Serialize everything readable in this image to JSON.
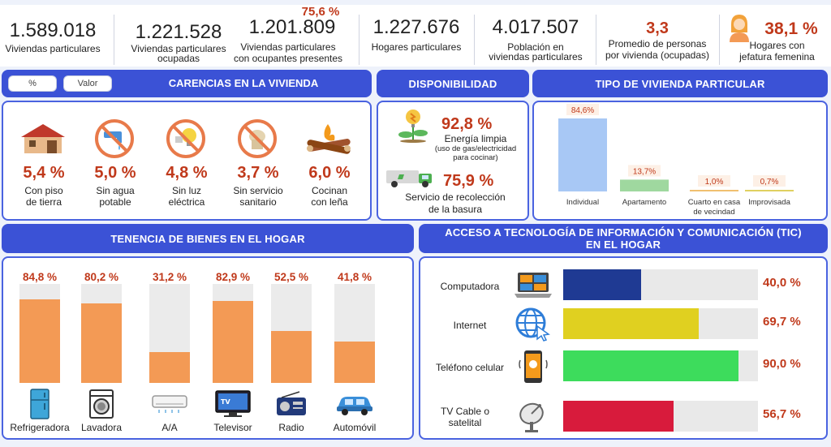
{
  "summary": {
    "viviendas_particulares": {
      "value": "1.589.018",
      "label": "Viviendas particulares"
    },
    "ocupadas": {
      "value": "1.221.528",
      "label_line1": "Viviendas particulares",
      "label_line2": "ocupadas"
    },
    "presentes": {
      "pct": "75,6 %",
      "value": "1.201.809",
      "label_line1": "Viviendas particulares",
      "label_line2": "con ocupantes presentes"
    },
    "hogares": {
      "value": "1.227.676",
      "label": "Hogares particulares"
    },
    "poblacion": {
      "value": "4.017.507",
      "label_line1": "Población en",
      "label_line2": "viviendas particulares"
    },
    "promedio": {
      "value": "3,3",
      "label_line1": "Promedio de personas",
      "label_line2": "por vivienda (ocupadas)"
    },
    "jefatura": {
      "value": "38,1 %",
      "label_line1": "Hogares con",
      "label_line2": "jefatura femenina"
    }
  },
  "toggle": {
    "pct_label": "%",
    "valor_label": "Valor"
  },
  "carencias": {
    "title": "CARENCIAS EN LA VIVIENDA",
    "items": [
      {
        "pct": "5,4 %",
        "line1": "Con piso",
        "line2": "de tierra",
        "icon": "house-icon"
      },
      {
        "pct": "5,0 %",
        "line1": "Sin agua",
        "line2": "potable",
        "icon": "no-water-icon"
      },
      {
        "pct": "4,8 %",
        "line1": "Sin luz",
        "line2": "eléctrica",
        "icon": "no-electricity-icon"
      },
      {
        "pct": "3,7 %",
        "line1": "Sin servicio",
        "line2": "sanitario",
        "icon": "no-toilet-icon"
      },
      {
        "pct": "6,0 %",
        "line1": "Cocinan",
        "line2": "con leña",
        "icon": "firewood-icon"
      }
    ]
  },
  "disponibilidad": {
    "title": "DISPONIBILIDAD",
    "energia": {
      "pct": "92,8 %",
      "line1": "Energía limpia",
      "line2": "(uso de gas/electricidad",
      "line3": "para cocinar)"
    },
    "basura": {
      "pct": "75,9 %",
      "line1": "Servicio de recolección",
      "line2": "de la basura"
    }
  },
  "tipo": {
    "title": "TIPO DE VIVIENDA PARTICULAR",
    "bars": [
      {
        "label": "Individual",
        "label2": "",
        "value": 84.6,
        "text": "84,6%",
        "color": "#a8c8f5"
      },
      {
        "label": "Apartamento",
        "label2": "",
        "value": 13.7,
        "text": "13,7%",
        "color": "#9fd89f"
      },
      {
        "label": "Cuarto en casa",
        "label2": "de vecindad",
        "value": 1.0,
        "text": "1,0%",
        "color": "#f0c070"
      },
      {
        "label": "Improvisada",
        "label2": "",
        "value": 0.7,
        "text": "0,7%",
        "color": "#e0d060"
      }
    ]
  },
  "bienes": {
    "title": "TENENCIA DE BIENES EN EL HOGAR",
    "items": [
      {
        "label": "Refrigeradora",
        "value": 84.8,
        "text": "84,8 %",
        "icon": "fridge-icon"
      },
      {
        "label": "Lavadora",
        "value": 80.2,
        "text": "80,2 %",
        "icon": "washer-icon"
      },
      {
        "label": "A/A",
        "value": 31.2,
        "text": "31,2 %",
        "icon": "air-conditioner-icon"
      },
      {
        "label": "Televisor",
        "value": 82.9,
        "text": "82,9 %",
        "icon": "tv-icon"
      },
      {
        "label": "Radio",
        "value": 52.5,
        "text": "52,5 %",
        "icon": "radio-icon"
      },
      {
        "label": "Automóvil",
        "value": 41.8,
        "text": "41,8 %",
        "icon": "car-icon"
      }
    ]
  },
  "tic": {
    "title_line1": "ACCESO A TECNOLOGÍA DE INFORMACIÓN Y COMUNICACIÓN (TIC)",
    "title_line2": "EN EL HOGAR",
    "items": [
      {
        "label": "Computadora",
        "label2": "",
        "value": 40.0,
        "text": "40,0 %",
        "color": "#1f3a93",
        "icon": "laptop-icon"
      },
      {
        "label": "Internet",
        "label2": "",
        "value": 69.7,
        "text": "69,7 %",
        "color": "#e0d020",
        "icon": "globe-icon"
      },
      {
        "label": "Teléfono celular",
        "label2": "",
        "value": 90.0,
        "text": "90,0 %",
        "color": "#3ddc5c",
        "icon": "phone-icon"
      },
      {
        "label": "TV Cable o",
        "label2": "satelital",
        "value": 56.7,
        "text": "56,7 %",
        "color": "#d81b3c",
        "icon": "satellite-icon"
      }
    ]
  }
}
